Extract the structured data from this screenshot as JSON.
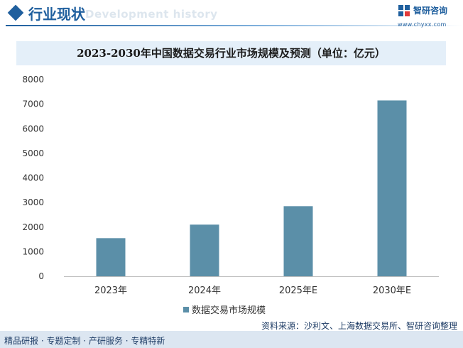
{
  "header": {
    "title": "行业现状",
    "subtitle": "Development history",
    "logo_name": "智研咨询",
    "logo_url": "www.chyxx.com"
  },
  "colors": {
    "bar": "#5b8fa8",
    "brand": "#1f5f9e",
    "title_band": "#e4eff9",
    "footer_band": "#dce6f1"
  },
  "chart_data": {
    "type": "bar",
    "title": "2023-2030年中国数据交易行业市场规模及预测（单位：亿元）",
    "categories": [
      "2023年",
      "2024年",
      "2025年E",
      "2030年E"
    ],
    "series": [
      {
        "name": "数据交易市场规模",
        "values": [
          1550,
          2100,
          2850,
          7150
        ]
      }
    ],
    "yticks": [
      "0",
      "1000",
      "2000",
      "3000",
      "4000",
      "5000",
      "6000",
      "7000",
      "8000"
    ],
    "ylim": [
      0,
      8000
    ],
    "grid": false,
    "legend_position": "bottom"
  },
  "footer": {
    "left": "精品研报 · 专题定制 · 产研服务 · 专精特新",
    "source": "资料来源：沙利文、上海数据交易所、智研咨询整理"
  }
}
